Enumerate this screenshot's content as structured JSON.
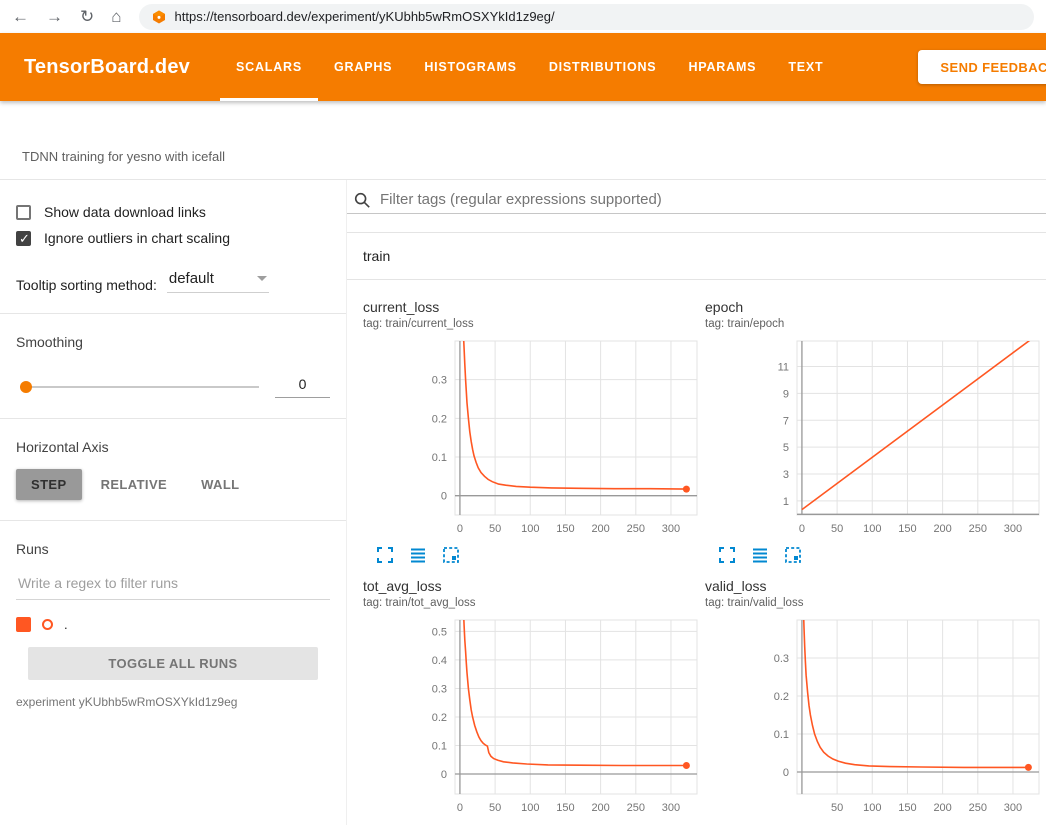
{
  "browser": {
    "url": "https://tensorboard.dev/experiment/yKUbhb5wRmOSXYkId1z9eg/"
  },
  "header": {
    "brand": "TensorBoard.dev",
    "tabs": [
      {
        "label": "SCALARS",
        "active": true
      },
      {
        "label": "GRAPHS",
        "active": false
      },
      {
        "label": "HISTOGRAMS",
        "active": false
      },
      {
        "label": "DISTRIBUTIONS",
        "active": false
      },
      {
        "label": "HPARAMS",
        "active": false
      },
      {
        "label": "TEXT",
        "active": false
      }
    ],
    "feedback_label": "SEND FEEDBACK"
  },
  "experiment": {
    "title": "TDNN training for yesno with icefall"
  },
  "sidebar": {
    "checkboxes": [
      {
        "label": "Show data download links",
        "checked": false
      },
      {
        "label": "Ignore outliers in chart scaling",
        "checked": true
      }
    ],
    "tooltip_sorting": {
      "label": "Tooltip sorting method:",
      "value": "default"
    },
    "smoothing": {
      "label": "Smoothing",
      "value": "0"
    },
    "horizontal_axis": {
      "label": "Horizontal Axis",
      "options": [
        {
          "label": "STEP",
          "selected": true
        },
        {
          "label": "RELATIVE",
          "selected": false
        },
        {
          "label": "WALL",
          "selected": false
        }
      ]
    },
    "runs": {
      "label": "Runs",
      "filter_placeholder": "Write a regex to filter runs",
      "items": [
        {
          "name": ".",
          "checked": true,
          "color": "#ff5722"
        }
      ],
      "toggle_all_label": "TOGGLE ALL RUNS",
      "experiment_note": "experiment yKUbhb5wRmOSXYkId1z9eg"
    }
  },
  "main": {
    "filter_placeholder": "Filter tags (regular expressions supported)",
    "group_label": "train"
  },
  "colors": {
    "header_orange": "#f57c00",
    "run_line": "#ff5722",
    "toolbar_icon": "#0288d1",
    "grid": "#e3e3e3",
    "axis": "#999999"
  },
  "chart_data": [
    {
      "type": "line",
      "title": "current_loss",
      "tag": "tag: train/current_loss",
      "xlim": [
        -7,
        337
      ],
      "ylim": [
        -0.05,
        0.4
      ],
      "xticks": [
        0,
        50,
        100,
        150,
        200,
        250,
        300
      ],
      "yticks": [
        0,
        0.1,
        0.2,
        0.3
      ],
      "series": [
        {
          "name": ".",
          "end_dot": true,
          "points": [
            [
              4,
              0.45
            ],
            [
              5,
              0.42
            ],
            [
              6,
              0.38
            ],
            [
              7,
              0.34
            ],
            [
              8,
              0.3
            ],
            [
              9,
              0.27
            ],
            [
              10,
              0.24
            ],
            [
              12,
              0.2
            ],
            [
              14,
              0.165
            ],
            [
              16,
              0.14
            ],
            [
              18,
              0.12
            ],
            [
              20,
              0.103
            ],
            [
              23,
              0.086
            ],
            [
              26,
              0.072
            ],
            [
              30,
              0.06
            ],
            [
              35,
              0.05
            ],
            [
              40,
              0.042
            ],
            [
              46,
              0.036
            ],
            [
              55,
              0.03
            ],
            [
              65,
              0.027
            ],
            [
              80,
              0.024
            ],
            [
              100,
              0.022
            ],
            [
              130,
              0.02
            ],
            [
              170,
              0.019
            ],
            [
              220,
              0.018
            ],
            [
              270,
              0.018
            ],
            [
              322,
              0.017
            ]
          ]
        }
      ]
    },
    {
      "type": "line",
      "title": "epoch",
      "tag": "tag: train/epoch",
      "xlim": [
        -7,
        337
      ],
      "ylim": [
        -0.05,
        12.9
      ],
      "xticks": [
        0,
        50,
        100,
        150,
        200,
        250,
        300
      ],
      "yticks": [
        1,
        3,
        5,
        7,
        9,
        11
      ],
      "series": [
        {
          "name": ".",
          "end_dot": false,
          "points": [
            [
              0,
              0.35
            ],
            [
              325,
              13.0
            ]
          ]
        }
      ]
    },
    {
      "type": "line",
      "title": "tot_avg_loss",
      "tag": "tag: train/tot_avg_loss",
      "xlim": [
        -7,
        337
      ],
      "ylim": [
        -0.07,
        0.54
      ],
      "xticks": [
        0,
        50,
        100,
        150,
        200,
        250,
        300
      ],
      "yticks": [
        0,
        0.1,
        0.2,
        0.3,
        0.4,
        0.5
      ],
      "series": [
        {
          "name": ".",
          "end_dot": true,
          "points": [
            [
              5,
              0.58
            ],
            [
              6,
              0.52
            ],
            [
              7,
              0.47
            ],
            [
              8,
              0.43
            ],
            [
              9,
              0.39
            ],
            [
              10,
              0.355
            ],
            [
              12,
              0.3
            ],
            [
              14,
              0.26
            ],
            [
              16,
              0.225
            ],
            [
              18,
              0.2
            ],
            [
              21,
              0.17
            ],
            [
              24,
              0.148
            ],
            [
              27,
              0.13
            ],
            [
              30,
              0.117
            ],
            [
              33,
              0.108
            ],
            [
              36,
              0.102
            ],
            [
              39,
              0.098
            ],
            [
              41,
              0.075
            ],
            [
              44,
              0.062
            ],
            [
              48,
              0.054
            ],
            [
              54,
              0.048
            ],
            [
              62,
              0.043
            ],
            [
              75,
              0.039
            ],
            [
              95,
              0.035
            ],
            [
              125,
              0.032
            ],
            [
              170,
              0.031
            ],
            [
              230,
              0.03
            ],
            [
              322,
              0.03
            ]
          ]
        }
      ]
    },
    {
      "type": "line",
      "title": "valid_loss",
      "tag": "tag: train/valid_loss",
      "xlim": [
        -7,
        337
      ],
      "ylim": [
        -0.058,
        0.4
      ],
      "xticks": [
        50,
        100,
        150,
        200,
        250,
        300
      ],
      "yticks": [
        0,
        0.1,
        0.2,
        0.3
      ],
      "series": [
        {
          "name": ".",
          "end_dot": true,
          "points": [
            [
              2,
              0.44
            ],
            [
              3,
              0.38
            ],
            [
              4,
              0.33
            ],
            [
              5,
              0.29
            ],
            [
              6,
              0.255
            ],
            [
              8,
              0.21
            ],
            [
              10,
              0.175
            ],
            [
              12,
              0.15
            ],
            [
              15,
              0.122
            ],
            [
              18,
              0.1
            ],
            [
              22,
              0.08
            ],
            [
              26,
              0.065
            ],
            [
              31,
              0.052
            ],
            [
              37,
              0.042
            ],
            [
              44,
              0.034
            ],
            [
              52,
              0.028
            ],
            [
              62,
              0.023
            ],
            [
              75,
              0.019
            ],
            [
              95,
              0.016
            ],
            [
              125,
              0.014
            ],
            [
              170,
              0.013
            ],
            [
              230,
              0.012
            ],
            [
              322,
              0.012
            ]
          ]
        }
      ]
    }
  ]
}
